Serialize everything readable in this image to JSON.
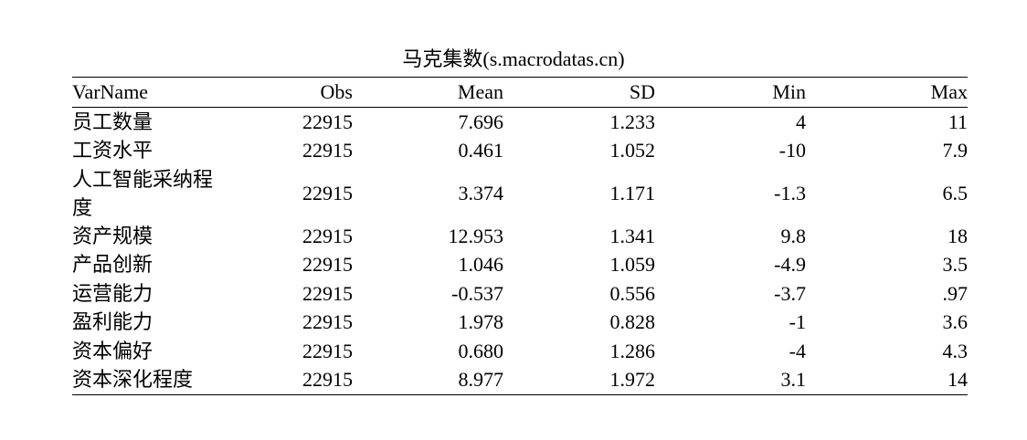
{
  "title": "马克集数(s.macrodatas.cn)",
  "table": {
    "headers": [
      "VarName",
      "Obs",
      "Mean",
      "SD",
      "Min",
      "Max"
    ],
    "rows": [
      [
        "员工数量",
        "22915",
        "7.696",
        "1.233",
        "4",
        "11"
      ],
      [
        "工资水平",
        "22915",
        "0.461",
        "1.052",
        "-10",
        "7.9"
      ],
      [
        "人工智能采纳程度",
        "22915",
        "3.374",
        "1.171",
        "-1.3",
        "6.5"
      ],
      [
        "资产规模",
        "22915",
        "12.953",
        "1.341",
        "9.8",
        "18"
      ],
      [
        "产品创新",
        "22915",
        "1.046",
        "1.059",
        "-4.9",
        "3.5"
      ],
      [
        "运营能力",
        "22915",
        "-0.537",
        "0.556",
        "-3.7",
        ".97"
      ],
      [
        "盈利能力",
        "22915",
        "1.978",
        "0.828",
        "-1",
        "3.6"
      ],
      [
        "资本偏好",
        "22915",
        "0.680",
        "1.286",
        "-4",
        "4.3"
      ],
      [
        "资本深化程度",
        "22915",
        "8.977",
        "1.972",
        "3.1",
        "14"
      ]
    ]
  }
}
